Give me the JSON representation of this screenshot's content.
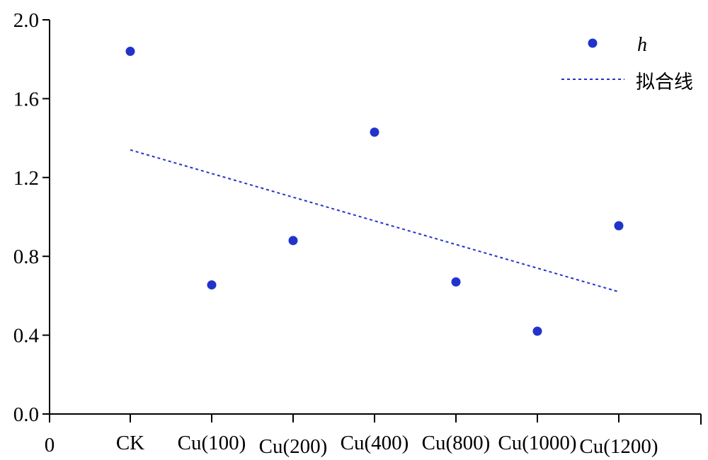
{
  "chart_data": {
    "type": "scatter",
    "x_origin_label": "0",
    "categories": [
      "CK",
      "Cu(100)",
      "Cu(200)",
      "Cu(400)",
      "Cu(800)",
      "Cu(1000)",
      "Cu(1200)"
    ],
    "ylim": [
      0.0,
      2.0
    ],
    "yticks": [
      "0.0",
      "0.4",
      "0.8",
      "1.2",
      "1.6",
      "2.0"
    ],
    "series": [
      {
        "name": "h",
        "kind": "points",
        "color": "#2233cc",
        "values": [
          1.84,
          0.655,
          0.88,
          1.43,
          0.67,
          0.42,
          0.955
        ]
      },
      {
        "name": "拟合线",
        "kind": "fit-line",
        "color": "#2233cc",
        "values": [
          1.34,
          1.22,
          1.1,
          0.98,
          0.86,
          0.74,
          0.62
        ]
      }
    ],
    "legend_position": "top-right",
    "grid": false,
    "title": "",
    "xlabel": "",
    "ylabel": ""
  }
}
